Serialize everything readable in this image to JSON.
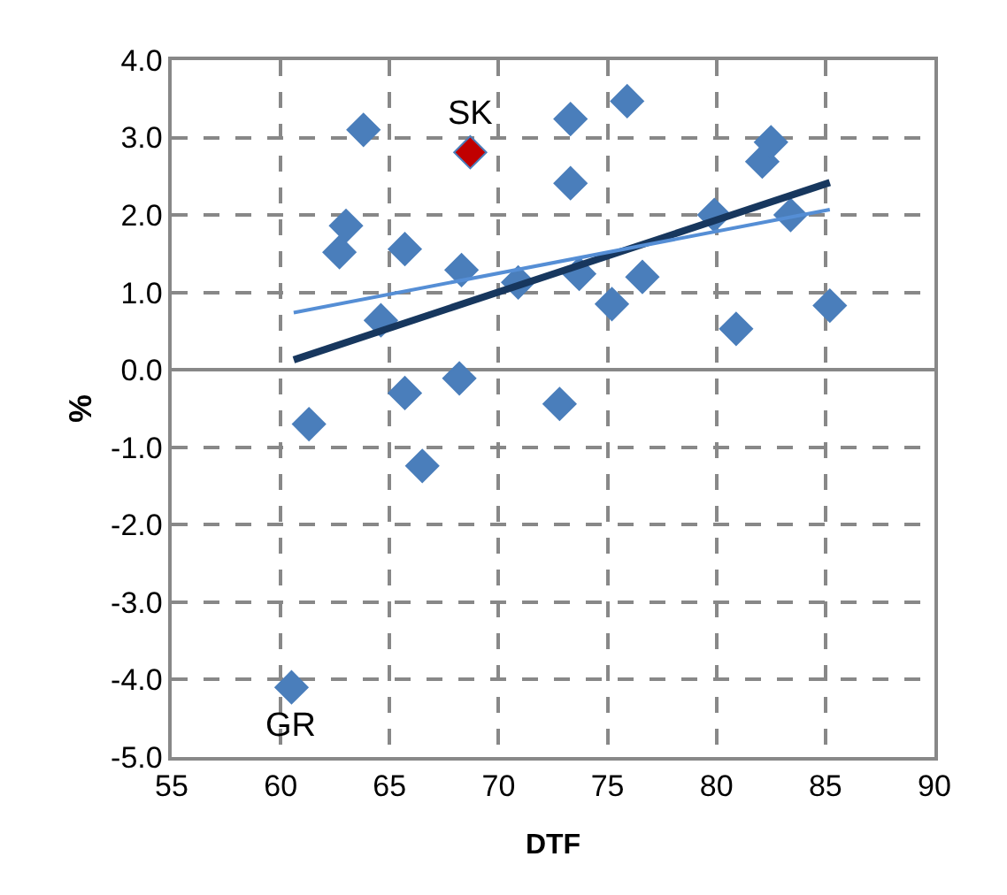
{
  "chart_data": {
    "type": "scatter",
    "xlabel": "DTF",
    "ylabel": "%",
    "xlim": [
      55,
      90
    ],
    "xticks": [
      55,
      60,
      65,
      70,
      75,
      80,
      85,
      90
    ],
    "ylim": [
      -5,
      4
    ],
    "yticks": [
      {
        "value": -5,
        "label": "-5.0"
      },
      {
        "value": -4,
        "label": "-4.0"
      },
      {
        "value": -3,
        "label": "-3.0"
      },
      {
        "value": -2,
        "label": "-2.0"
      },
      {
        "value": -1,
        "label": "-1.0"
      },
      {
        "value": 0,
        "label": "0.0"
      },
      {
        "value": 1,
        "label": "1.0"
      },
      {
        "value": 2,
        "label": "2.0"
      },
      {
        "value": 3,
        "label": "3.0"
      },
      {
        "value": 4,
        "label": "4.0"
      }
    ],
    "grid": true,
    "marker": "diamond",
    "series": [
      {
        "color": "#4a7ebb",
        "x": [
          60.5,
          61.3,
          62.7,
          63.0,
          63.8,
          64.6,
          65.7,
          65.7,
          66.5,
          68.3,
          68.2,
          70.9,
          72.8,
          73.3,
          73.3,
          73.7,
          75.9,
          75.2,
          76.6,
          79.9,
          80.9,
          82.1,
          82.5,
          83.4,
          85.2
        ],
        "values": [
          -4.1,
          -0.7,
          1.52,
          1.86,
          3.1,
          0.64,
          1.56,
          -0.3,
          -1.24,
          1.29,
          -0.11,
          1.13,
          -0.44,
          3.24,
          2.41,
          1.24,
          3.47,
          0.85,
          1.2,
          2.0,
          0.53,
          2.69,
          2.94,
          2.0,
          0.83
        ]
      },
      {
        "color": "#c00000",
        "x": [
          68.7
        ],
        "values": [
          2.81
        ]
      },
      {
        "type": "line",
        "marker": "none",
        "color": "#17375e",
        "x": [
          60.6,
          85.2
        ],
        "values": [
          0.13,
          2.42
        ]
      },
      {
        "type": "line",
        "marker": "none",
        "color": "#558ed5",
        "x": [
          60.6,
          85.2
        ],
        "values": [
          0.74,
          2.07
        ]
      }
    ],
    "annotations": [
      {
        "text": "SK",
        "x": 68.7,
        "y": 2.81
      },
      {
        "text": "GR",
        "x": 60.5,
        "y": -4.1
      }
    ]
  }
}
